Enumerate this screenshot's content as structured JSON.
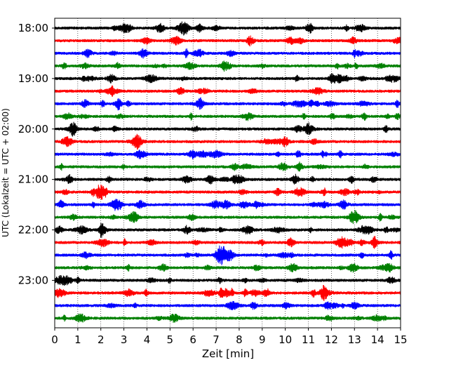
{
  "chart_data": {
    "type": "line",
    "title": "",
    "xlabel": "Zeit  [min]",
    "ylabel": "UTC (Lokalzeit = UTC + 02:00)",
    "xlim": [
      0,
      15
    ],
    "x_ticks": [
      "0",
      "1",
      "2",
      "3",
      "4",
      "5",
      "6",
      "7",
      "8",
      "9",
      "10",
      "11",
      "12",
      "13",
      "14",
      "15"
    ],
    "y_ticks": [
      {
        "label": "18:00",
        "trace": 0
      },
      {
        "label": "19:00",
        "trace": 4
      },
      {
        "label": "20:00",
        "trace": 8
      },
      {
        "label": "21:00",
        "trace": 12
      },
      {
        "label": "22:00",
        "trace": 16
      },
      {
        "label": "23:00",
        "trace": 20
      }
    ],
    "grid": "vertical dotted",
    "trace_interval_min": 15,
    "trace_colors": [
      "#000000",
      "#ff0000",
      "#0000ff",
      "#008000"
    ],
    "traces": 24
  }
}
